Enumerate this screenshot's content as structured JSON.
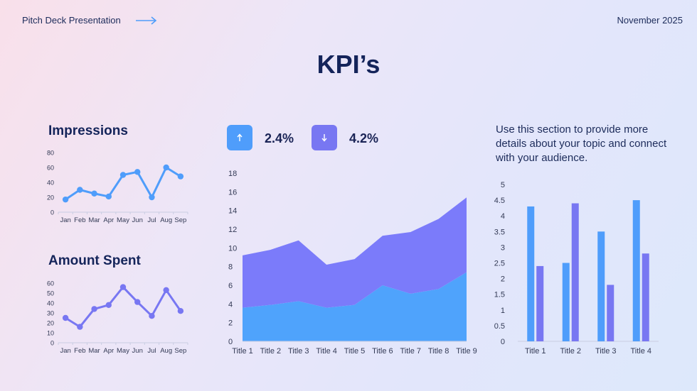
{
  "header": {
    "left_label": "Pitch Deck Presentation",
    "right_label": "November 2025",
    "arrow_icon": "arrow-right-icon"
  },
  "page_title": "KPI’s",
  "kpis": [
    {
      "icon": "arrow-up-icon",
      "value": "2.4%",
      "color": "#4f9dfb"
    },
    {
      "icon": "arrow-down-icon",
      "value": "4.2%",
      "color": "#7877f2"
    }
  ],
  "description": "Use this section to provide more details about your topic and connect with your audience.",
  "chart_data": [
    {
      "id": "impressions",
      "type": "line",
      "title": "Impressions",
      "categories": [
        "Jan",
        "Feb",
        "Mar",
        "Apr",
        "May",
        "Jun",
        "Jul",
        "Aug",
        "Sep"
      ],
      "series": [
        {
          "values": [
            17,
            30,
            25,
            21,
            50,
            54,
            20,
            60,
            48
          ],
          "color": "#4f9dfb"
        }
      ],
      "ylim": [
        0,
        80
      ],
      "yticks": [
        0,
        20,
        40,
        60,
        80
      ],
      "grid": false
    },
    {
      "id": "amount",
      "type": "line",
      "title": "Amount Spent",
      "categories": [
        "Jan",
        "Feb",
        "Mar",
        "Apr",
        "May",
        "Jun",
        "Jul",
        "Aug",
        "Sep"
      ],
      "series": [
        {
          "values": [
            25,
            16,
            34,
            38,
            56,
            41,
            27,
            53,
            32
          ],
          "color": "#7877f2"
        }
      ],
      "ylim": [
        0,
        60
      ],
      "yticks": [
        0,
        10,
        20,
        30,
        40,
        50,
        60
      ],
      "grid": false
    },
    {
      "id": "area",
      "type": "area",
      "title": "",
      "categories": [
        "Title 1",
        "Title 2",
        "Title 3",
        "Title 4",
        "Title 5",
        "Title 6",
        "Title 7",
        "Title 8",
        "Title 9"
      ],
      "stacked": true,
      "series": [
        {
          "values": [
            3.6,
            3.9,
            4.3,
            3.6,
            3.9,
            6.0,
            5.1,
            5.6,
            7.4
          ],
          "color": "#4fa3fc"
        },
        {
          "values": [
            5.6,
            5.9,
            6.5,
            4.6,
            4.9,
            5.3,
            6.6,
            7.5,
            8.0
          ],
          "color": "#7b7bfa"
        }
      ],
      "ylim": [
        0,
        18
      ],
      "yticks": [
        0,
        2,
        4,
        6,
        8,
        10,
        12,
        14,
        16,
        18
      ],
      "grid": false
    },
    {
      "id": "bars",
      "type": "bar",
      "title": "",
      "categories": [
        "Title 1",
        "Title 2",
        "Title 3",
        "Title 4"
      ],
      "series": [
        {
          "values": [
            4.3,
            2.5,
            3.5,
            4.5
          ],
          "color": "#4f9dfb"
        },
        {
          "values": [
            2.4,
            4.4,
            1.8,
            2.8
          ],
          "color": "#7877f2"
        }
      ],
      "ylim": [
        0,
        5
      ],
      "yticks": [
        "0",
        "0.5",
        "1",
        "1.5",
        "2",
        "2.5",
        "3",
        "3.5",
        "4",
        "4.5",
        "5"
      ],
      "grid": false
    }
  ]
}
